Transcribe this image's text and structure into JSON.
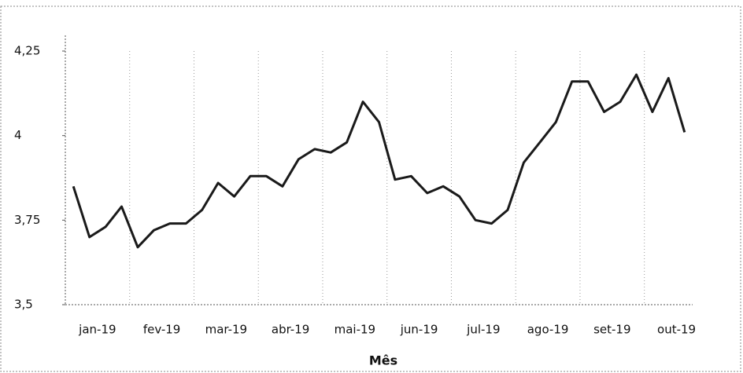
{
  "chart_data": {
    "type": "line",
    "x_label": "Mês",
    "categories": [
      null,
      "jan-19",
      null,
      null,
      null,
      "fev-19",
      null,
      null,
      null,
      "mar-19",
      null,
      null,
      null,
      "abr-19",
      null,
      null,
      null,
      "mai-19",
      null,
      null,
      null,
      "jun-19",
      null,
      null,
      null,
      "jul-19",
      null,
      null,
      null,
      "ago-19",
      null,
      null,
      null,
      "set-19",
      null,
      null,
      null,
      "out-19",
      null
    ],
    "series": [
      {
        "color": "#1a1a1a",
        "values": [
          3.85,
          3.7,
          3.73,
          3.79,
          3.67,
          3.72,
          3.74,
          3.74,
          3.78,
          3.86,
          3.82,
          3.88,
          3.88,
          3.85,
          3.93,
          3.96,
          3.95,
          3.98,
          4.1,
          4.04,
          3.87,
          3.88,
          3.83,
          3.85,
          3.82,
          3.75,
          3.74,
          3.78,
          3.92,
          3.98,
          4.04,
          4.16,
          4.16,
          4.07,
          4.1,
          4.18,
          4.07,
          4.17,
          4.01
        ]
      }
    ],
    "ylim": [
      3.5,
      4.25
    ],
    "yticks": [
      {
        "value": 3.5,
        "label": "3,5"
      },
      {
        "value": 3.75,
        "label": "3,75"
      },
      4,
      {
        "value": 4.25,
        "label": "4,25"
      }
    ],
    "grid": "x"
  }
}
